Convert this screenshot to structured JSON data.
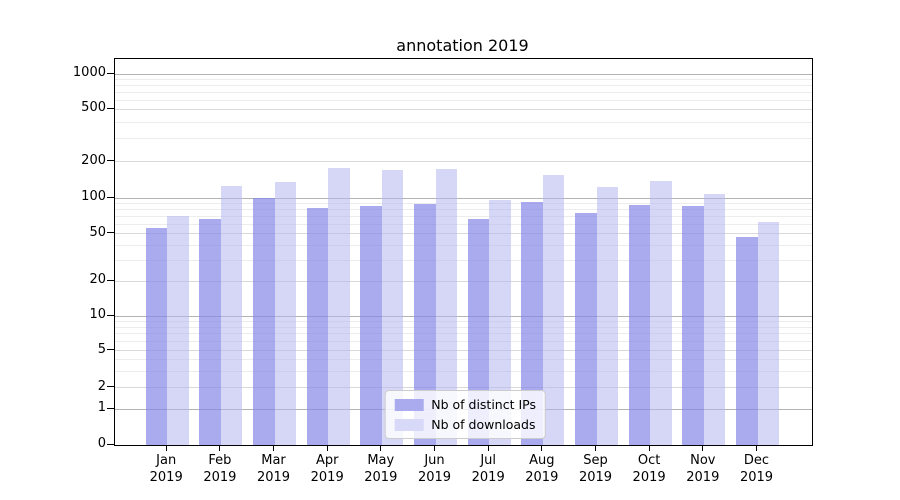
{
  "title": "annotation 2019",
  "legend": {
    "items": [
      {
        "label": "Nb of distinct IPs",
        "color": "#aaaaef"
      },
      {
        "label": "Nb of downloads",
        "color": "#d8d8f8"
      }
    ],
    "position": "lower center"
  },
  "chart_data": {
    "type": "bar",
    "title": "annotation 2019",
    "categories": [
      "Jan",
      "Feb",
      "Mar",
      "Apr",
      "May",
      "Jun",
      "Jul",
      "Aug",
      "Sep",
      "Oct",
      "Nov",
      "Dec"
    ],
    "year": "2019",
    "series": [
      {
        "name": "Nb of distinct IPs",
        "color": "#aaaaef",
        "values": [
          56,
          67,
          101,
          83,
          86,
          89,
          66,
          93,
          75,
          87,
          85,
          47
        ]
      },
      {
        "name": "Nb of downloads",
        "color": "#d8d8f8",
        "values": [
          71,
          126,
          136,
          176,
          171,
          174,
          97,
          155,
          124,
          139,
          109,
          63
        ]
      }
    ],
    "xlabel": "",
    "ylabel": "",
    "yscale": "symlog-like",
    "yticks": [
      0,
      1,
      2,
      5,
      10,
      20,
      50,
      100,
      200,
      500,
      1000
    ],
    "ytick_labels": [
      "0",
      "1",
      "2",
      "5",
      "10",
      "20",
      "50",
      "100",
      "200",
      "500",
      "1000"
    ],
    "minor_gridlines": [
      3,
      4,
      6,
      7,
      8,
      9,
      30,
      40,
      60,
      70,
      80,
      90,
      300,
      400,
      600,
      700,
      800,
      900
    ],
    "mid_gridlines": [
      2,
      5,
      20,
      50,
      200,
      500
    ],
    "major_gridlines": [
      1,
      10,
      100,
      1000
    ],
    "ylim": [
      0,
      1150
    ],
    "grid": true,
    "legend_position": "lower center",
    "scale_anchors": [
      {
        "value": 0,
        "frac": 0.0
      },
      {
        "value": 1,
        "frac": 0.0925
      },
      {
        "value": 2,
        "frac": 0.1484
      },
      {
        "value": 5,
        "frac": 0.2443
      },
      {
        "value": 10,
        "frac": 0.3342
      },
      {
        "value": 20,
        "frac": 0.4241
      },
      {
        "value": 50,
        "frac": 0.5474
      },
      {
        "value": 100,
        "frac": 0.6399
      },
      {
        "value": 200,
        "frac": 0.7339
      },
      {
        "value": 500,
        "frac": 0.8697
      },
      {
        "value": 1000,
        "frac": 0.9603
      }
    ]
  },
  "colors": {
    "bar_ips_solid": "#aaaaef",
    "bar_downloads_solid": "#d8d8f8",
    "grid_major": "#b3b3b3",
    "grid_mid": "#d9d9d9",
    "grid_minor": "#ececec",
    "axis": "#000000",
    "background": "#ffffff"
  }
}
